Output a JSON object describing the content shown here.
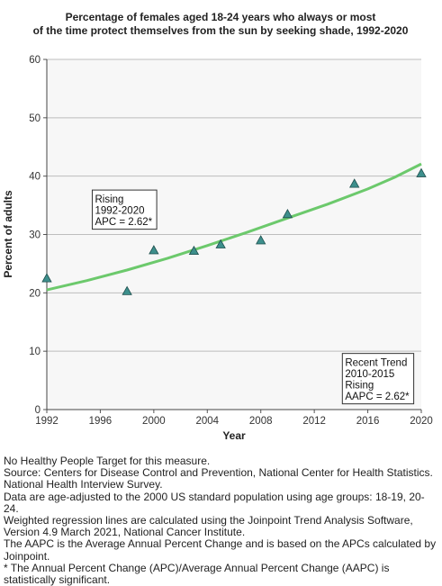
{
  "chart_data": {
    "type": "scatter",
    "title_lines": [
      "Percentage of females aged 18-24 years who always or most",
      "of the time protect themselves from the sun by seeking shade, 1992-2020"
    ],
    "xlabel": "Year",
    "ylabel": "Percent of adults",
    "xlim": [
      1992,
      2020
    ],
    "ylim": [
      0,
      60
    ],
    "xticks": [
      "1992",
      "1996",
      "2000",
      "2004",
      "2008",
      "2012",
      "2016",
      "2020"
    ],
    "yticks": [
      "0",
      "10",
      "20",
      "30",
      "40",
      "50",
      "60"
    ],
    "grid": true,
    "points": [
      {
        "x": 1992,
        "y": 22.5
      },
      {
        "x": 1998,
        "y": 20.3
      },
      {
        "x": 2000,
        "y": 27.3
      },
      {
        "x": 2003,
        "y": 27.2
      },
      {
        "x": 2005,
        "y": 28.3
      },
      {
        "x": 2008,
        "y": 29.0
      },
      {
        "x": 2010,
        "y": 33.5
      },
      {
        "x": 2015,
        "y": 38.7
      },
      {
        "x": 2020,
        "y": 40.5
      }
    ],
    "trend_line": {
      "x": [
        1992,
        1995,
        1998,
        2001,
        2004,
        2007,
        2010,
        2013,
        2016,
        2018,
        2020
      ],
      "y": [
        20.5,
        22.1,
        23.9,
        25.9,
        28.1,
        30.4,
        32.8,
        35.2,
        37.8,
        39.8,
        42.1
      ]
    },
    "marker_color": "#3d8f8c",
    "line_color": "#6cc96c",
    "annotations": [
      {
        "lines": [
          "Rising",
          "1992-2020",
          "APC =  2.62*"
        ],
        "anchor": {
          "x": 1995.6,
          "y": 37
        }
      },
      {
        "lines": [
          "Recent Trend",
          "2010-2015",
          "Rising",
          "AAPC =  2.62*"
        ],
        "anchor": {
          "x": 2014.3,
          "y": 9
        }
      }
    ]
  },
  "notes": [
    "No Healthy People Target for this measure.",
    "Source: Centers for Disease Control and Prevention, National Center for Health Statistics. National Health Interview Survey.",
    "Data are age-adjusted to the 2000 US standard population using age groups: 18-19, 20-24.",
    "Weighted regression lines are calculated using the Joinpoint Trend Analysis Software, Version 4.9 March 2021, National Cancer Institute.",
    "The AAPC is the Average Annual Percent Change and is based on the APCs calculated by Joinpoint.",
    "* The Annual Percent Change (APC)/Average Annual Percent Change (AAPC) is statistically significant."
  ]
}
